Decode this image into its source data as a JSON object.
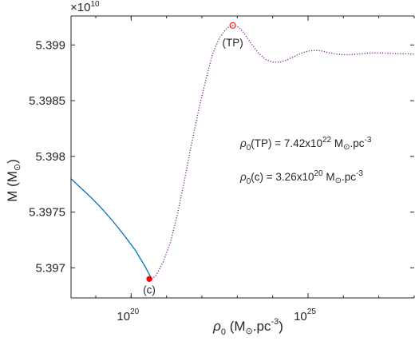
{
  "chart_data": {
    "type": "line",
    "title": "",
    "xscale": "log",
    "xlim": [
      2e+18,
      1e+28
    ],
    "ylim": [
      53967300000,
      53992600000
    ],
    "y_multiplier_label": "×10",
    "y_multiplier_exp": "10",
    "xticks": [
      {
        "value": 1e+20,
        "base": "10",
        "exp": "20"
      },
      {
        "value": 1e+25,
        "base": "10",
        "exp": "25"
      }
    ],
    "yticks": [
      {
        "value": 53970000000,
        "label": "5.397"
      },
      {
        "value": 53975000000,
        "label": "5.3975"
      },
      {
        "value": 53980000000,
        "label": "5.398"
      },
      {
        "value": 53985000000,
        "label": "5.3985"
      },
      {
        "value": 53990000000,
        "label": "5.399"
      }
    ],
    "xlabel": {
      "rho": "ρ",
      "sub0": "0",
      "open": " (M",
      "sun": "⊙",
      "mid": ".pc",
      "exp": "-3",
      "close": ")"
    },
    "ylabel": {
      "text": "M (M",
      "sun": "⊙",
      "close": ")"
    },
    "series": [
      {
        "style": "solid",
        "color": "#0072BD",
        "x": [
          2e+18,
          4e+18,
          8e+18,
          1.6e+19,
          3.2e+19,
          6.4e+19,
          1.3e+20,
          2.5e+20,
          3.8e+20
        ],
        "y": [
          53978000000,
          53977100000,
          53976200000,
          53975200000,
          53974100000,
          53972900000,
          53971600000,
          53970100000,
          53969000000
        ]
      },
      {
        "style": "dotted",
        "color": "#7E2F8E",
        "x": [
          3.8e+20,
          5e+20,
          8e+20,
          1.3e+21,
          2e+21,
          3.2e+21,
          5e+21,
          8e+21,
          1.3e+22,
          2e+22,
          3.2e+22,
          5e+22,
          7.42e+22,
          1.1e+23,
          1.6e+23,
          2.5e+23,
          4e+23,
          6.3e+23,
          1e+24,
          1.6e+24,
          2.5e+24,
          4e+24,
          6.3e+24,
          1e+25,
          1.6e+25,
          2.5e+25,
          4e+25,
          6.3e+25,
          1e+26,
          1.6e+26,
          2.5e+26,
          4e+26,
          6.3e+26,
          1e+27,
          1.6e+27,
          2.5e+27,
          4e+27,
          1e+28
        ],
        "y": [
          53969000000,
          53969300000,
          53970500000,
          53972300000,
          53974700000,
          53977800000,
          53981000000,
          53984100000,
          53986900000,
          53989200000,
          53990700000,
          53991500000,
          53991750000,
          53991600000,
          53991000000,
          53990100000,
          53989250000,
          53988700000,
          53988450000,
          53988450000,
          53988650000,
          53988950000,
          53989250000,
          53989450000,
          53989520000,
          53989450000,
          53989300000,
          53989180000,
          53989120000,
          53989120000,
          53989180000,
          53989240000,
          53989280000,
          53989280000,
          53989260000,
          53989230000,
          53989210000,
          53989190000
        ]
      }
    ],
    "points": [
      {
        "name": "c",
        "label": "(c)",
        "x": 3.26e+20,
        "y": 53969000000,
        "style": "filled",
        "color": "#ff0000"
      },
      {
        "name": "TP",
        "label": "(TP)",
        "x": 7.42e+22,
        "y": 53991750000,
        "style": "open",
        "color": "#ff0000"
      }
    ],
    "annotations": [
      {
        "rho": "ρ",
        "sub": "0",
        "arg": "(TP) = 7.42x10",
        "exp": "22",
        "unit": " M",
        "sun": "⊙",
        "tail": ".pc",
        "exp2": "-3"
      },
      {
        "rho": "ρ",
        "sub": "0",
        "arg": "(c) = 3.26x10",
        "exp": "20",
        "unit": " M",
        "sun": "⊙",
        "tail": ".pc",
        "exp2": "-3"
      }
    ],
    "grid": false
  }
}
